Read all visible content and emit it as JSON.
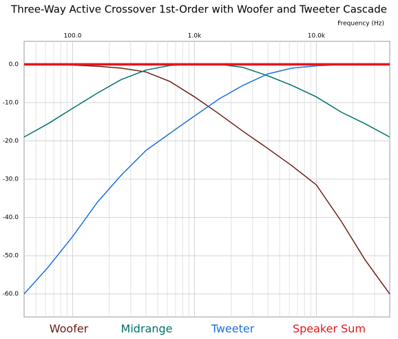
{
  "chart_data": {
    "type": "line",
    "title": "Three-Way Active Crossover 1st-Order with Woofer and Tweeter Cascade",
    "x_label": "Frequency  (Hz)",
    "x_scale": "log",
    "x": [
      40,
      63,
      100,
      160,
      250,
      400,
      630,
      1000,
      1600,
      2500,
      4000,
      6300,
      10000,
      16000,
      25000,
      40000
    ],
    "series": [
      {
        "name": "Woofer",
        "color": "#6b1a14",
        "values": [
          0,
          0,
          -0.2,
          -0.5,
          -1,
          -2,
          -4.5,
          -8.5,
          -13,
          -17.5,
          -22,
          -26.5,
          -31.5,
          -41,
          -51,
          -60
        ]
      },
      {
        "name": "Midrange",
        "color": "#00706a",
        "values": [
          -19,
          -15.5,
          -11.5,
          -7.5,
          -4,
          -1.5,
          -0.3,
          0,
          0,
          -0.8,
          -3,
          -5.5,
          -8.5,
          -12.5,
          -15.5,
          -19
        ]
      },
      {
        "name": "Tweeter",
        "color": "#1a6fdf",
        "values": [
          -60,
          -53,
          -45,
          -36,
          -29,
          -22.5,
          -18,
          -13.5,
          -9,
          -5.5,
          -2.5,
          -1,
          -0.4,
          -0.1,
          0,
          null
        ]
      },
      {
        "name": "Speaker Sum",
        "color": "#e8141a",
        "values": [
          0,
          0,
          0,
          0,
          0,
          0,
          0,
          0,
          0,
          0,
          0,
          0,
          0,
          0,
          0,
          0
        ]
      }
    ],
    "xlim": [
      40,
      40000
    ],
    "ylim": [
      -66,
      6
    ],
    "xticks": [
      {
        "value": 100,
        "label": "100.0"
      },
      {
        "value": 1000,
        "label": "1.0k"
      },
      {
        "value": 10000,
        "label": "10.0k"
      }
    ],
    "xminor": [
      50,
      60,
      70,
      80,
      90,
      200,
      300,
      400,
      500,
      600,
      700,
      800,
      900,
      2000,
      3000,
      4000,
      5000,
      6000,
      7000,
      8000,
      9000,
      20000,
      30000
    ],
    "yticks": [
      {
        "value": 0,
        "label": "0.0"
      },
      {
        "value": -10,
        "label": "-10.0"
      },
      {
        "value": -20,
        "label": "-20.0"
      },
      {
        "value": -30,
        "label": "-30.0"
      },
      {
        "value": -40,
        "label": "-40.0"
      },
      {
        "value": -50,
        "label": "-50.0"
      },
      {
        "value": -60,
        "label": "-60.0"
      }
    ],
    "grid": true
  }
}
